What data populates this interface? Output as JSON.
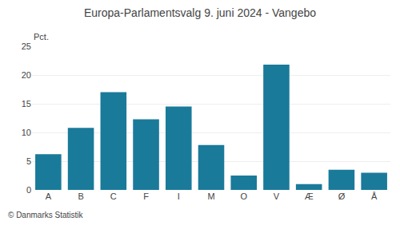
{
  "chart_data": {
    "type": "bar",
    "title": "Europa-Parlamentsvalg 9. juni 2024 - Vangebo",
    "ylabel": "Pct.",
    "annotations": [
      "© Danmarks Statistik"
    ],
    "categories": [
      "A",
      "B",
      "C",
      "F",
      "I",
      "M",
      "O",
      "V",
      "Æ",
      "Ø",
      "Å"
    ],
    "values": [
      6.2,
      10.8,
      17.0,
      12.3,
      14.5,
      7.8,
      2.5,
      21.8,
      1.0,
      3.5,
      3.0
    ],
    "color": "#1a7a9a",
    "ylim": [
      0,
      25
    ],
    "yticks": [
      0,
      5,
      10,
      15,
      20,
      25
    ],
    "grid": true
  }
}
